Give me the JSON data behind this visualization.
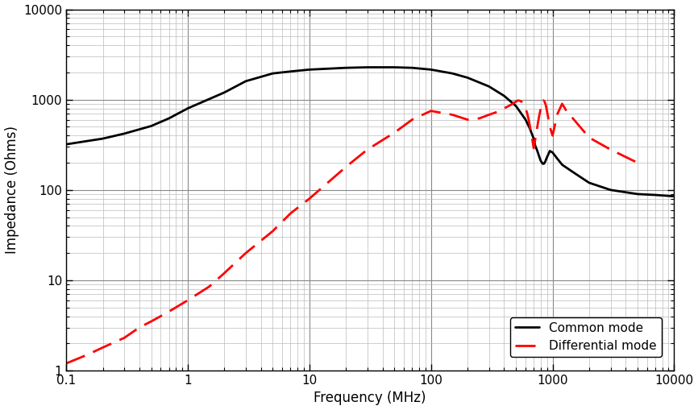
{
  "title": "",
  "xlabel": "Frequency (MHz)",
  "ylabel": "Impedance (Ohms)",
  "xlim": [
    0.1,
    10000
  ],
  "ylim": [
    1,
    10000
  ],
  "background_color": "#ffffff",
  "grid_major_color": "#888888",
  "grid_minor_color": "#bbbbbb",
  "common_mode": {
    "freq": [
      0.1,
      0.2,
      0.3,
      0.5,
      0.7,
      1.0,
      2.0,
      3.0,
      5.0,
      7.0,
      10.0,
      20.0,
      30.0,
      50.0,
      70.0,
      100.0,
      150.0,
      200.0,
      300.0,
      400.0,
      500.0,
      600.0,
      650.0,
      700.0,
      720.0,
      750.0,
      780.0,
      800.0,
      830.0,
      850.0,
      870.0,
      900.0,
      950.0,
      1000.0,
      1100.0,
      1200.0,
      1500.0,
      2000.0,
      3000.0,
      5000.0,
      7000.0,
      10000.0
    ],
    "imp": [
      320,
      370,
      420,
      510,
      620,
      800,
      1200,
      1600,
      1950,
      2050,
      2150,
      2250,
      2280,
      2280,
      2250,
      2150,
      1950,
      1750,
      1400,
      1100,
      850,
      600,
      480,
      370,
      310,
      270,
      230,
      210,
      195,
      195,
      205,
      230,
      270,
      260,
      220,
      190,
      155,
      120,
      100,
      90,
      88,
      85
    ],
    "color": "#000000",
    "linewidth": 2.0,
    "label": "Common mode"
  },
  "differential_mode": {
    "freq": [
      0.1,
      0.15,
      0.2,
      0.3,
      0.4,
      0.5,
      0.7,
      1.0,
      1.5,
      2.0,
      3.0,
      5.0,
      7.0,
      10.0,
      20.0,
      30.0,
      50.0,
      70.0,
      100.0,
      150.0,
      200.0,
      250.0,
      300.0,
      350.0,
      400.0,
      450.0,
      500.0,
      520.0,
      540.0,
      560.0,
      580.0,
      600.0,
      620.0,
      640.0,
      660.0,
      680.0,
      700.0,
      720.0,
      740.0,
      760.0,
      780.0,
      800.0,
      820.0,
      840.0,
      860.0,
      880.0,
      900.0,
      950.0,
      1000.0,
      1100.0,
      1200.0,
      1300.0,
      1500.0,
      2000.0,
      3000.0,
      5000.0
    ],
    "imp": [
      1.2,
      1.5,
      1.8,
      2.3,
      3.0,
      3.5,
      4.5,
      6.0,
      8.5,
      12,
      20,
      35,
      55,
      80,
      180,
      280,
      430,
      600,
      750,
      680,
      600,
      620,
      680,
      730,
      800,
      870,
      950,
      980,
      970,
      940,
      890,
      800,
      700,
      580,
      460,
      370,
      290,
      360,
      450,
      560,
      680,
      800,
      900,
      980,
      950,
      870,
      750,
      500,
      400,
      700,
      900,
      750,
      600,
      380,
      280,
      200
    ],
    "color": "#ff0000",
    "linewidth": 2.0,
    "label": "Differential mode"
  }
}
